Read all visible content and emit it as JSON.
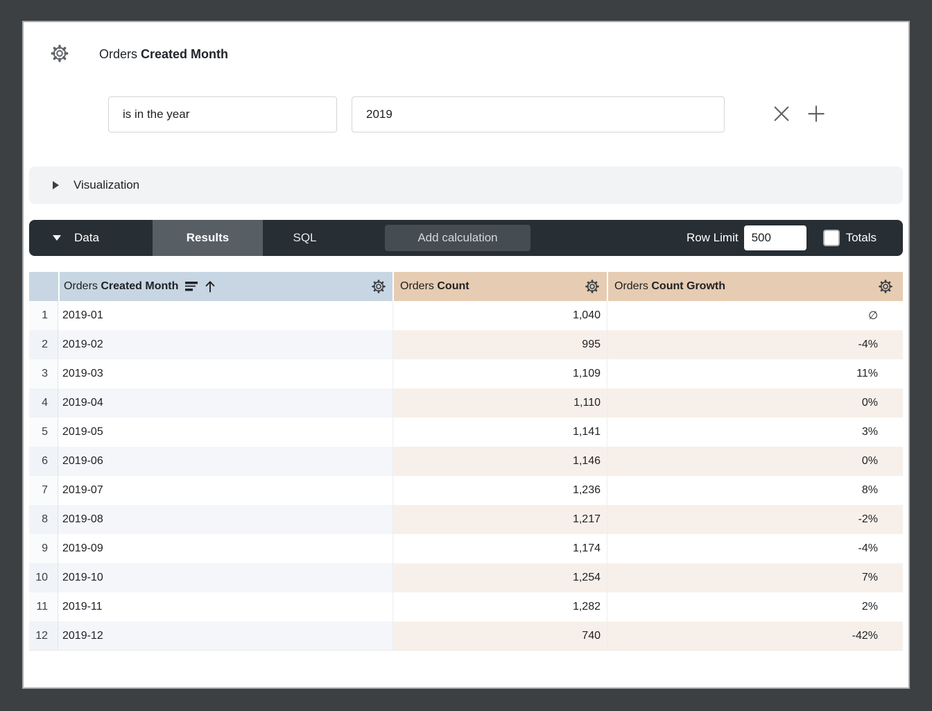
{
  "header": {
    "title_prefix": "Orders",
    "title_bold": "Created Month"
  },
  "filter": {
    "condition": "is in the year",
    "value": "2019"
  },
  "visualization": {
    "label": "Visualization"
  },
  "data_bar": {
    "label": "Data",
    "tabs": [
      {
        "label": "Results",
        "active": true
      },
      {
        "label": "SQL",
        "active": false
      }
    ],
    "add_calculation_label": "Add calculation",
    "row_limit_label": "Row Limit",
    "row_limit_value": "500",
    "totals_label": "Totals",
    "totals_checked": false
  },
  "table": {
    "columns": [
      {
        "prefix": "Orders",
        "bold": "Created Month",
        "type": "dimension",
        "sorted": "ascending"
      },
      {
        "prefix": "Orders",
        "bold": "Count",
        "type": "measure"
      },
      {
        "prefix": "Orders",
        "bold": "Count Growth",
        "type": "measure"
      }
    ],
    "rows": [
      {
        "n": "1",
        "month": "2019-01",
        "count": "1,040",
        "growth": "∅"
      },
      {
        "n": "2",
        "month": "2019-02",
        "count": "995",
        "growth": "-4%"
      },
      {
        "n": "3",
        "month": "2019-03",
        "count": "1,109",
        "growth": "11%"
      },
      {
        "n": "4",
        "month": "2019-04",
        "count": "1,110",
        "growth": "0%"
      },
      {
        "n": "5",
        "month": "2019-05",
        "count": "1,141",
        "growth": "3%"
      },
      {
        "n": "6",
        "month": "2019-06",
        "count": "1,146",
        "growth": "0%"
      },
      {
        "n": "7",
        "month": "2019-07",
        "count": "1,236",
        "growth": "8%"
      },
      {
        "n": "8",
        "month": "2019-08",
        "count": "1,217",
        "growth": "-2%"
      },
      {
        "n": "9",
        "month": "2019-09",
        "count": "1,174",
        "growth": "-4%"
      },
      {
        "n": "10",
        "month": "2019-10",
        "count": "1,254",
        "growth": "7%"
      },
      {
        "n": "11",
        "month": "2019-11",
        "count": "1,282",
        "growth": "2%"
      },
      {
        "n": "12",
        "month": "2019-12",
        "count": "740",
        "growth": "-42%"
      }
    ]
  },
  "icons": {
    "title_gear": "gear-icon",
    "remove_filter": "x-icon",
    "add_filter": "plus-icon",
    "viz_collapsed": "chevron-right-icon",
    "data_expanded": "chevron-down-icon",
    "dimension_sort": "sort-lines-icon and arrow-up-icon"
  },
  "colors": {
    "outer_background": "#3c4043",
    "dark_bar": "#272e34",
    "active_tab": "#575e64",
    "add_calc_button": "#454c52",
    "dimension_header": "#c7d6e2",
    "measure_header": "#e6ccb3",
    "even_row_dimension": "#f4f6fa",
    "even_row_measure": "#f7f0ea",
    "visualization_bar": "#f1f3f4"
  }
}
